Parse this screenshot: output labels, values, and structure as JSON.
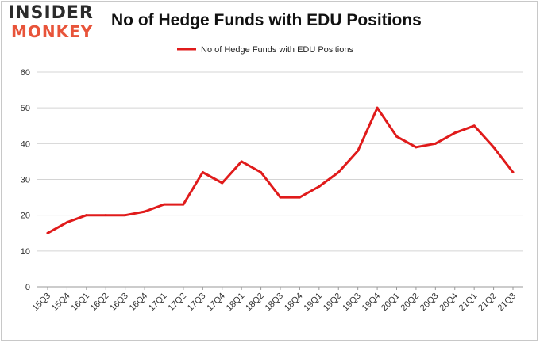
{
  "brand": {
    "logo_line1": "INSIDER",
    "logo_line2": "MONKEY",
    "accent_color": "#e8543a"
  },
  "chart_data": {
    "type": "line",
    "title": "No of Hedge Funds with EDU Positions",
    "xlabel": "",
    "ylabel": "",
    "ylim": [
      0,
      60
    ],
    "yticks": [
      0,
      10,
      20,
      30,
      40,
      50,
      60
    ],
    "grid": true,
    "legend_position": "top-center",
    "categories": [
      "15Q3",
      "15Q4",
      "16Q1",
      "16Q2",
      "16Q3",
      "16Q4",
      "17Q1",
      "17Q2",
      "17Q3",
      "17Q4",
      "18Q1",
      "18Q2",
      "18Q3",
      "18Q4",
      "19Q1",
      "19Q2",
      "19Q3",
      "19Q4",
      "20Q1",
      "20Q2",
      "20Q3",
      "20Q4",
      "21Q1",
      "21Q2",
      "21Q3"
    ],
    "series": [
      {
        "name": "No of Hedge Funds with EDU Positions",
        "color": "#e01b1b",
        "values": [
          15,
          18,
          20,
          20,
          20,
          21,
          23,
          23,
          32,
          29,
          35,
          32,
          25,
          25,
          28,
          32,
          38,
          50,
          42,
          39,
          40,
          43,
          45,
          39,
          32
        ]
      }
    ]
  }
}
